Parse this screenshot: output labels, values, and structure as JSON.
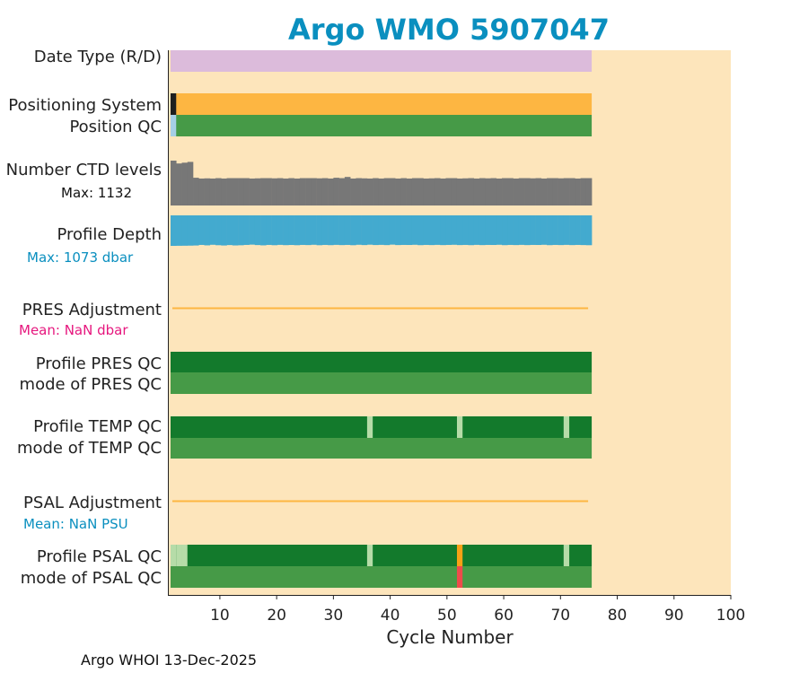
{
  "chart_data": {
    "type": "qc-status-strip",
    "title": "Argo WMO 5907047",
    "xlabel": "Cycle Number",
    "xlim": [
      1,
      100
    ],
    "xticks": [
      10,
      20,
      30,
      40,
      50,
      60,
      70,
      80,
      90,
      100
    ],
    "last_cycle": 75,
    "footer": "Argo WHOI 13-Dec-2025",
    "colors": {
      "background": "#fde5bb",
      "title": "#0a8fbf",
      "date_type": "#dcbbdb",
      "positioning_system": "#fdb642",
      "positioning_first": "#1f1f1f",
      "qc_good": "#137a2c",
      "qc_mode_good": "#469a47",
      "qc_light": "#b6dca8",
      "qc_probably_bad": "#f7a116",
      "qc_bad": "#ee4b4b",
      "position_qc_first": "#a6cfe6",
      "ctd_levels": "#777777",
      "profile_depth": "#43aacf",
      "adjustment_line": "#fdb642",
      "annot_teal": "#0a8fbf",
      "annot_magenta": "#e6177e"
    },
    "rows": [
      {
        "label": "Date Type (R/D)"
      },
      {
        "label": "Positioning System"
      },
      {
        "label": "Position QC"
      },
      {
        "label": "Number CTD levels",
        "annotation": "Max: 1132"
      },
      {
        "label": "Profile Depth",
        "annotation": "Max: 1073 dbar"
      },
      {
        "label": "PRES Adjustment",
        "annotation": "Mean:  NaN dbar"
      },
      {
        "label": "Profile PRES QC"
      },
      {
        "label": "mode of PRES QC"
      },
      {
        "label": "Profile TEMP QC"
      },
      {
        "label": "mode of TEMP QC"
      },
      {
        "label": "PSAL Adjustment",
        "annotation": "Mean:  NaN PSU"
      },
      {
        "label": "Profile PSAL QC"
      },
      {
        "label": "mode of PSAL QC"
      }
    ],
    "series": {
      "ctd_levels": [
        1132,
        1060,
        1080,
        1100,
        700,
        680,
        685,
        680,
        690,
        680,
        690,
        690,
        690,
        690,
        680,
        685,
        690,
        690,
        685,
        690,
        680,
        690,
        680,
        690,
        690,
        690,
        685,
        690,
        680,
        700,
        690,
        720,
        680,
        690,
        685,
        680,
        690,
        680,
        690,
        690,
        680,
        690,
        680,
        690,
        690,
        680,
        685,
        690,
        680,
        690,
        690,
        680,
        685,
        690,
        680,
        690,
        685,
        690,
        680,
        690,
        690,
        680,
        690,
        690,
        685,
        690,
        680,
        690,
        690,
        685,
        690,
        690,
        680,
        690,
        690
      ],
      "profile_depth": [
        1073,
        1070,
        1068,
        1065,
        1060,
        1040,
        1055,
        1035,
        1050,
        1060,
        1045,
        1058,
        1052,
        1040,
        1030,
        1045,
        1055,
        1040,
        1050,
        1038,
        1048,
        1042,
        1050,
        1040,
        1045,
        1035,
        1050,
        1040,
        1048,
        1038,
        1046,
        1040,
        1050,
        1035,
        1045,
        1032,
        1044,
        1038,
        1046,
        1030,
        1045,
        1040,
        1042,
        1035,
        1048,
        1040,
        1045,
        1038,
        1046,
        1040,
        1035,
        1045,
        1040,
        1048,
        1038,
        1046,
        1040,
        1042,
        1035,
        1048,
        1040,
        1045,
        1038,
        1046,
        1040,
        1042,
        1035,
        1048,
        1040,
        1045,
        1038,
        1046,
        1040,
        1045,
        1050
      ],
      "positioning_system": {
        "first_cycle_color": "positioning_first",
        "rest": "positioning_system"
      },
      "position_qc": {
        "first_cycle_color": "position_qc_first",
        "rest": "qc_mode_good"
      },
      "temp_qc_light_cycles": [
        36,
        52,
        71
      ],
      "psal_qc_light_cycles": [
        1,
        2,
        3,
        36,
        71
      ],
      "psal_qc_probably_bad_cycles": [
        52
      ],
      "psal_mode_bad_cycles": [
        52
      ]
    }
  }
}
